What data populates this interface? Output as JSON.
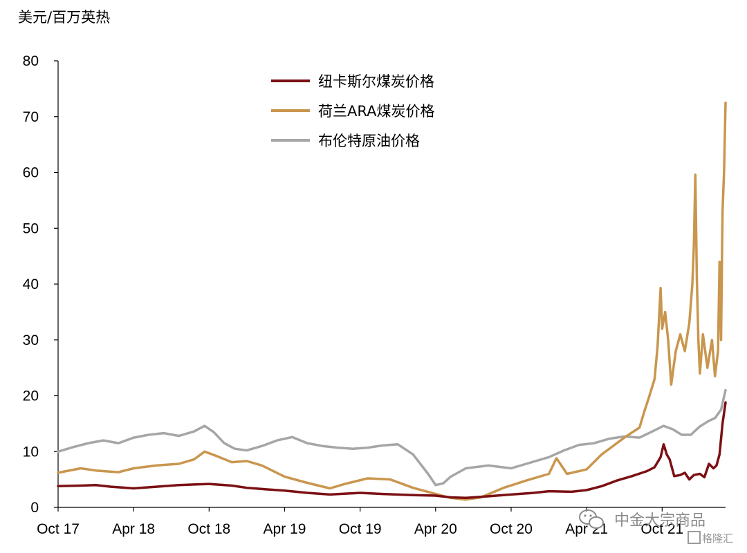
{
  "chart_data": {
    "type": "line",
    "unit_label": "美元/百万英热",
    "x_tick_labels": [
      "Oct 17",
      "Apr 18",
      "Oct 18",
      "Apr 19",
      "Oct 19",
      "Apr 20",
      "Oct 20",
      "Apr 21",
      "Oct 21"
    ],
    "x_ticks": [
      2017.75,
      2018.25,
      2018.75,
      2019.25,
      2019.75,
      2020.25,
      2020.75,
      2021.25,
      2021.75
    ],
    "xlim": [
      2017.75,
      2022.17
    ],
    "ylim": [
      0,
      80
    ],
    "y_ticks": [
      0,
      10,
      20,
      30,
      40,
      50,
      60,
      70,
      80
    ],
    "legend_position": "top-center",
    "series": [
      {
        "name": "纽卡斯尔煤炭价格",
        "color": "#7b1014",
        "points": [
          [
            2017.75,
            3.8
          ],
          [
            2017.9,
            3.9
          ],
          [
            2018.0,
            4.0
          ],
          [
            2018.1,
            3.7
          ],
          [
            2018.25,
            3.4
          ],
          [
            2018.4,
            3.7
          ],
          [
            2018.55,
            4.0
          ],
          [
            2018.65,
            4.1
          ],
          [
            2018.75,
            4.2
          ],
          [
            2018.9,
            3.9
          ],
          [
            2019.0,
            3.5
          ],
          [
            2019.1,
            3.3
          ],
          [
            2019.25,
            3.0
          ],
          [
            2019.4,
            2.6
          ],
          [
            2019.55,
            2.3
          ],
          [
            2019.75,
            2.6
          ],
          [
            2019.9,
            2.4
          ],
          [
            2020.1,
            2.2
          ],
          [
            2020.25,
            2.1
          ],
          [
            2020.35,
            1.8
          ],
          [
            2020.45,
            1.7
          ],
          [
            2020.55,
            1.9
          ],
          [
            2020.75,
            2.3
          ],
          [
            2020.9,
            2.6
          ],
          [
            2021.0,
            2.9
          ],
          [
            2021.15,
            2.8
          ],
          [
            2021.25,
            3.1
          ],
          [
            2021.35,
            3.8
          ],
          [
            2021.45,
            4.8
          ],
          [
            2021.55,
            5.6
          ],
          [
            2021.65,
            6.5
          ],
          [
            2021.7,
            7.2
          ],
          [
            2021.74,
            9.0
          ],
          [
            2021.76,
            11.3
          ],
          [
            2021.78,
            9.5
          ],
          [
            2021.8,
            8.6
          ],
          [
            2021.83,
            5.6
          ],
          [
            2021.87,
            5.8
          ],
          [
            2021.9,
            6.2
          ],
          [
            2021.93,
            5.0
          ],
          [
            2021.96,
            5.8
          ],
          [
            2022.0,
            6.0
          ],
          [
            2022.03,
            5.4
          ],
          [
            2022.06,
            7.8
          ],
          [
            2022.09,
            7.0
          ],
          [
            2022.11,
            7.5
          ],
          [
            2022.13,
            9.5
          ],
          [
            2022.15,
            15.0
          ],
          [
            2022.17,
            18.8
          ]
        ]
      },
      {
        "name": "荷兰ARA煤炭价格",
        "color": "#c9964e",
        "points": [
          [
            2017.75,
            6.2
          ],
          [
            2017.9,
            7.0
          ],
          [
            2018.0,
            6.6
          ],
          [
            2018.15,
            6.3
          ],
          [
            2018.25,
            7.0
          ],
          [
            2018.4,
            7.5
          ],
          [
            2018.55,
            7.8
          ],
          [
            2018.65,
            8.6
          ],
          [
            2018.72,
            10.0
          ],
          [
            2018.8,
            9.2
          ],
          [
            2018.9,
            8.1
          ],
          [
            2019.0,
            8.3
          ],
          [
            2019.1,
            7.5
          ],
          [
            2019.25,
            5.5
          ],
          [
            2019.4,
            4.4
          ],
          [
            2019.55,
            3.4
          ],
          [
            2019.65,
            4.2
          ],
          [
            2019.8,
            5.2
          ],
          [
            2019.95,
            5.0
          ],
          [
            2020.1,
            3.5
          ],
          [
            2020.25,
            2.4
          ],
          [
            2020.35,
            1.7
          ],
          [
            2020.45,
            1.4
          ],
          [
            2020.55,
            1.8
          ],
          [
            2020.7,
            3.5
          ],
          [
            2020.85,
            4.8
          ],
          [
            2021.0,
            6.0
          ],
          [
            2021.05,
            8.8
          ],
          [
            2021.12,
            6.0
          ],
          [
            2021.25,
            6.8
          ],
          [
            2021.35,
            9.5
          ],
          [
            2021.5,
            12.5
          ],
          [
            2021.6,
            14.3
          ],
          [
            2021.63,
            17.0
          ],
          [
            2021.66,
            19.5
          ],
          [
            2021.7,
            23.0
          ],
          [
            2021.72,
            29.0
          ],
          [
            2021.74,
            39.3
          ],
          [
            2021.75,
            32.0
          ],
          [
            2021.77,
            35.0
          ],
          [
            2021.79,
            30.0
          ],
          [
            2021.81,
            22.0
          ],
          [
            2021.84,
            28.0
          ],
          [
            2021.87,
            31.0
          ],
          [
            2021.9,
            28.0
          ],
          [
            2021.93,
            33.0
          ],
          [
            2021.95,
            40.0
          ],
          [
            2021.96,
            47.0
          ],
          [
            2021.97,
            59.6
          ],
          [
            2021.98,
            41.0
          ],
          [
            2021.99,
            30.0
          ],
          [
            2022.0,
            24.0
          ],
          [
            2022.02,
            31.0
          ],
          [
            2022.05,
            25.0
          ],
          [
            2022.08,
            30.0
          ],
          [
            2022.1,
            23.5
          ],
          [
            2022.12,
            28.0
          ],
          [
            2022.13,
            44.0
          ],
          [
            2022.14,
            30.0
          ],
          [
            2022.15,
            53.0
          ],
          [
            2022.16,
            60.0
          ],
          [
            2022.17,
            72.5
          ]
        ]
      },
      {
        "name": "布伦特原油价格",
        "color": "#a6a6a6",
        "points": [
          [
            2017.75,
            10.0
          ],
          [
            2017.85,
            10.8
          ],
          [
            2017.95,
            11.5
          ],
          [
            2018.05,
            12.0
          ],
          [
            2018.15,
            11.5
          ],
          [
            2018.25,
            12.5
          ],
          [
            2018.35,
            13.0
          ],
          [
            2018.45,
            13.3
          ],
          [
            2018.55,
            12.8
          ],
          [
            2018.65,
            13.6
          ],
          [
            2018.72,
            14.6
          ],
          [
            2018.78,
            13.5
          ],
          [
            2018.85,
            11.5
          ],
          [
            2018.92,
            10.5
          ],
          [
            2019.0,
            10.2
          ],
          [
            2019.1,
            11.0
          ],
          [
            2019.2,
            12.0
          ],
          [
            2019.3,
            12.6
          ],
          [
            2019.4,
            11.5
          ],
          [
            2019.5,
            11.0
          ],
          [
            2019.6,
            10.7
          ],
          [
            2019.7,
            10.5
          ],
          [
            2019.8,
            10.7
          ],
          [
            2019.9,
            11.1
          ],
          [
            2020.0,
            11.3
          ],
          [
            2020.1,
            9.5
          ],
          [
            2020.2,
            6.0
          ],
          [
            2020.25,
            4.0
          ],
          [
            2020.3,
            4.3
          ],
          [
            2020.35,
            5.5
          ],
          [
            2020.45,
            7.0
          ],
          [
            2020.6,
            7.5
          ],
          [
            2020.75,
            7.0
          ],
          [
            2020.85,
            7.8
          ],
          [
            2021.0,
            9.0
          ],
          [
            2021.1,
            10.2
          ],
          [
            2021.2,
            11.2
          ],
          [
            2021.3,
            11.5
          ],
          [
            2021.4,
            12.3
          ],
          [
            2021.5,
            12.7
          ],
          [
            2021.6,
            12.5
          ],
          [
            2021.7,
            13.8
          ],
          [
            2021.76,
            14.6
          ],
          [
            2021.82,
            14.0
          ],
          [
            2021.88,
            13.0
          ],
          [
            2021.94,
            13.0
          ],
          [
            2022.0,
            14.5
          ],
          [
            2022.06,
            15.5
          ],
          [
            2022.1,
            16.0
          ],
          [
            2022.14,
            17.5
          ],
          [
            2022.17,
            21.0
          ]
        ]
      }
    ]
  },
  "watermark": {
    "text1": "中金大宗商品",
    "text2": "格隆汇",
    "icon": "wechat-icon"
  }
}
